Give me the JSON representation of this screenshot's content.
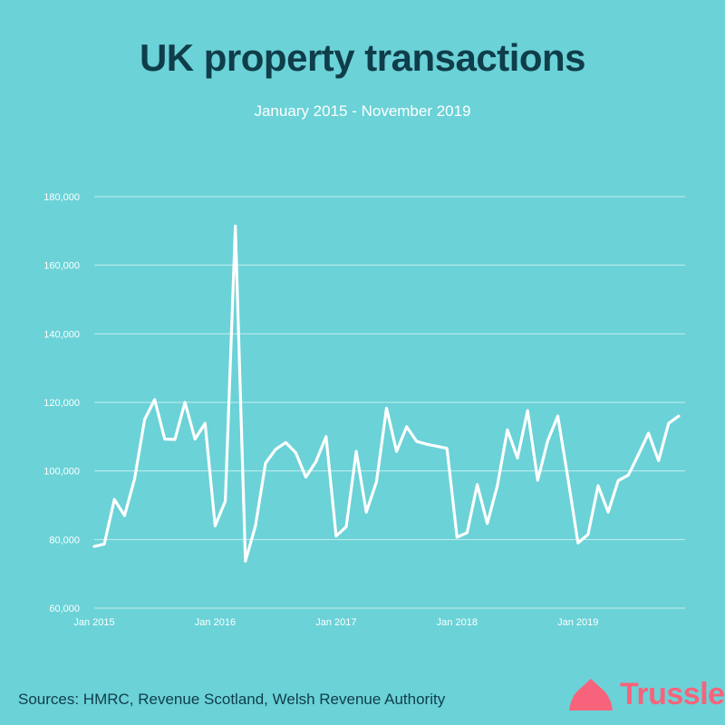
{
  "title": "UK property transactions",
  "subtitle": "January 2015 - November 2019",
  "source": "Sources: HMRC, Revenue Scotland, Welsh Revenue Authority",
  "brand": "Trussle",
  "colors": {
    "background": "#6bd2d7",
    "title": "#0f3d4a",
    "line": "#ffffff",
    "grid": "#ffffff",
    "brand": "#f7637a"
  },
  "chart_data": {
    "type": "line",
    "title": "UK property transactions",
    "subtitle": "January 2015 - November 2019",
    "xlabel": "",
    "ylabel": "",
    "ylim": [
      60000,
      180000
    ],
    "yticks": [
      60000,
      80000,
      100000,
      120000,
      140000,
      160000,
      180000
    ],
    "ytick_labels": [
      "60,000",
      "80,000",
      "100,000",
      "120,000",
      "140,000",
      "160,000",
      "180,000"
    ],
    "xticks": [
      "2015-01",
      "2016-01",
      "2017-01",
      "2018-01",
      "2019-01"
    ],
    "xtick_labels": [
      "Jan 2015",
      "Jan 2016",
      "Jan 2017",
      "Jan 2018",
      "Jan 2019"
    ],
    "grid": true,
    "series": [
      {
        "x": [
          "2015-01",
          "2015-02",
          "2015-03",
          "2015-04",
          "2015-05",
          "2015-06",
          "2015-07",
          "2015-08",
          "2015-09",
          "2015-10",
          "2015-11",
          "2015-12",
          "2016-01",
          "2016-02",
          "2016-03",
          "2016-04",
          "2016-05",
          "2016-06",
          "2016-07",
          "2016-08",
          "2016-09",
          "2016-10",
          "2016-11",
          "2016-12",
          "2017-01",
          "2017-02",
          "2017-03",
          "2017-04",
          "2017-05",
          "2017-06",
          "2017-07",
          "2017-08",
          "2017-09",
          "2017-10",
          "2017-11",
          "2017-12",
          "2018-01",
          "2018-02",
          "2018-03",
          "2018-04",
          "2018-05",
          "2018-06",
          "2018-07",
          "2018-08",
          "2018-09",
          "2018-10",
          "2018-11",
          "2018-12",
          "2019-01",
          "2019-02",
          "2019-03",
          "2019-04",
          "2019-05",
          "2019-06",
          "2019-07",
          "2019-08",
          "2019-09",
          "2019-10",
          "2019-11"
        ],
        "values": [
          78000,
          78700,
          91700,
          87000,
          97700,
          115000,
          120800,
          109300,
          109200,
          120000,
          109300,
          113900,
          84000,
          91200,
          171400,
          73700,
          84000,
          102300,
          106300,
          108300,
          105300,
          98200,
          102700,
          110000,
          81000,
          83700,
          105700,
          88000,
          96800,
          118300,
          105700,
          112900,
          108600,
          107800,
          107200,
          106600,
          80700,
          82000,
          96000,
          84700,
          95700,
          112000,
          103800,
          117600,
          97300,
          108800,
          116000,
          98000,
          79000,
          81500,
          95700,
          88000,
          97200,
          98800,
          104800,
          111000,
          103000,
          113900,
          116000
        ]
      }
    ]
  }
}
